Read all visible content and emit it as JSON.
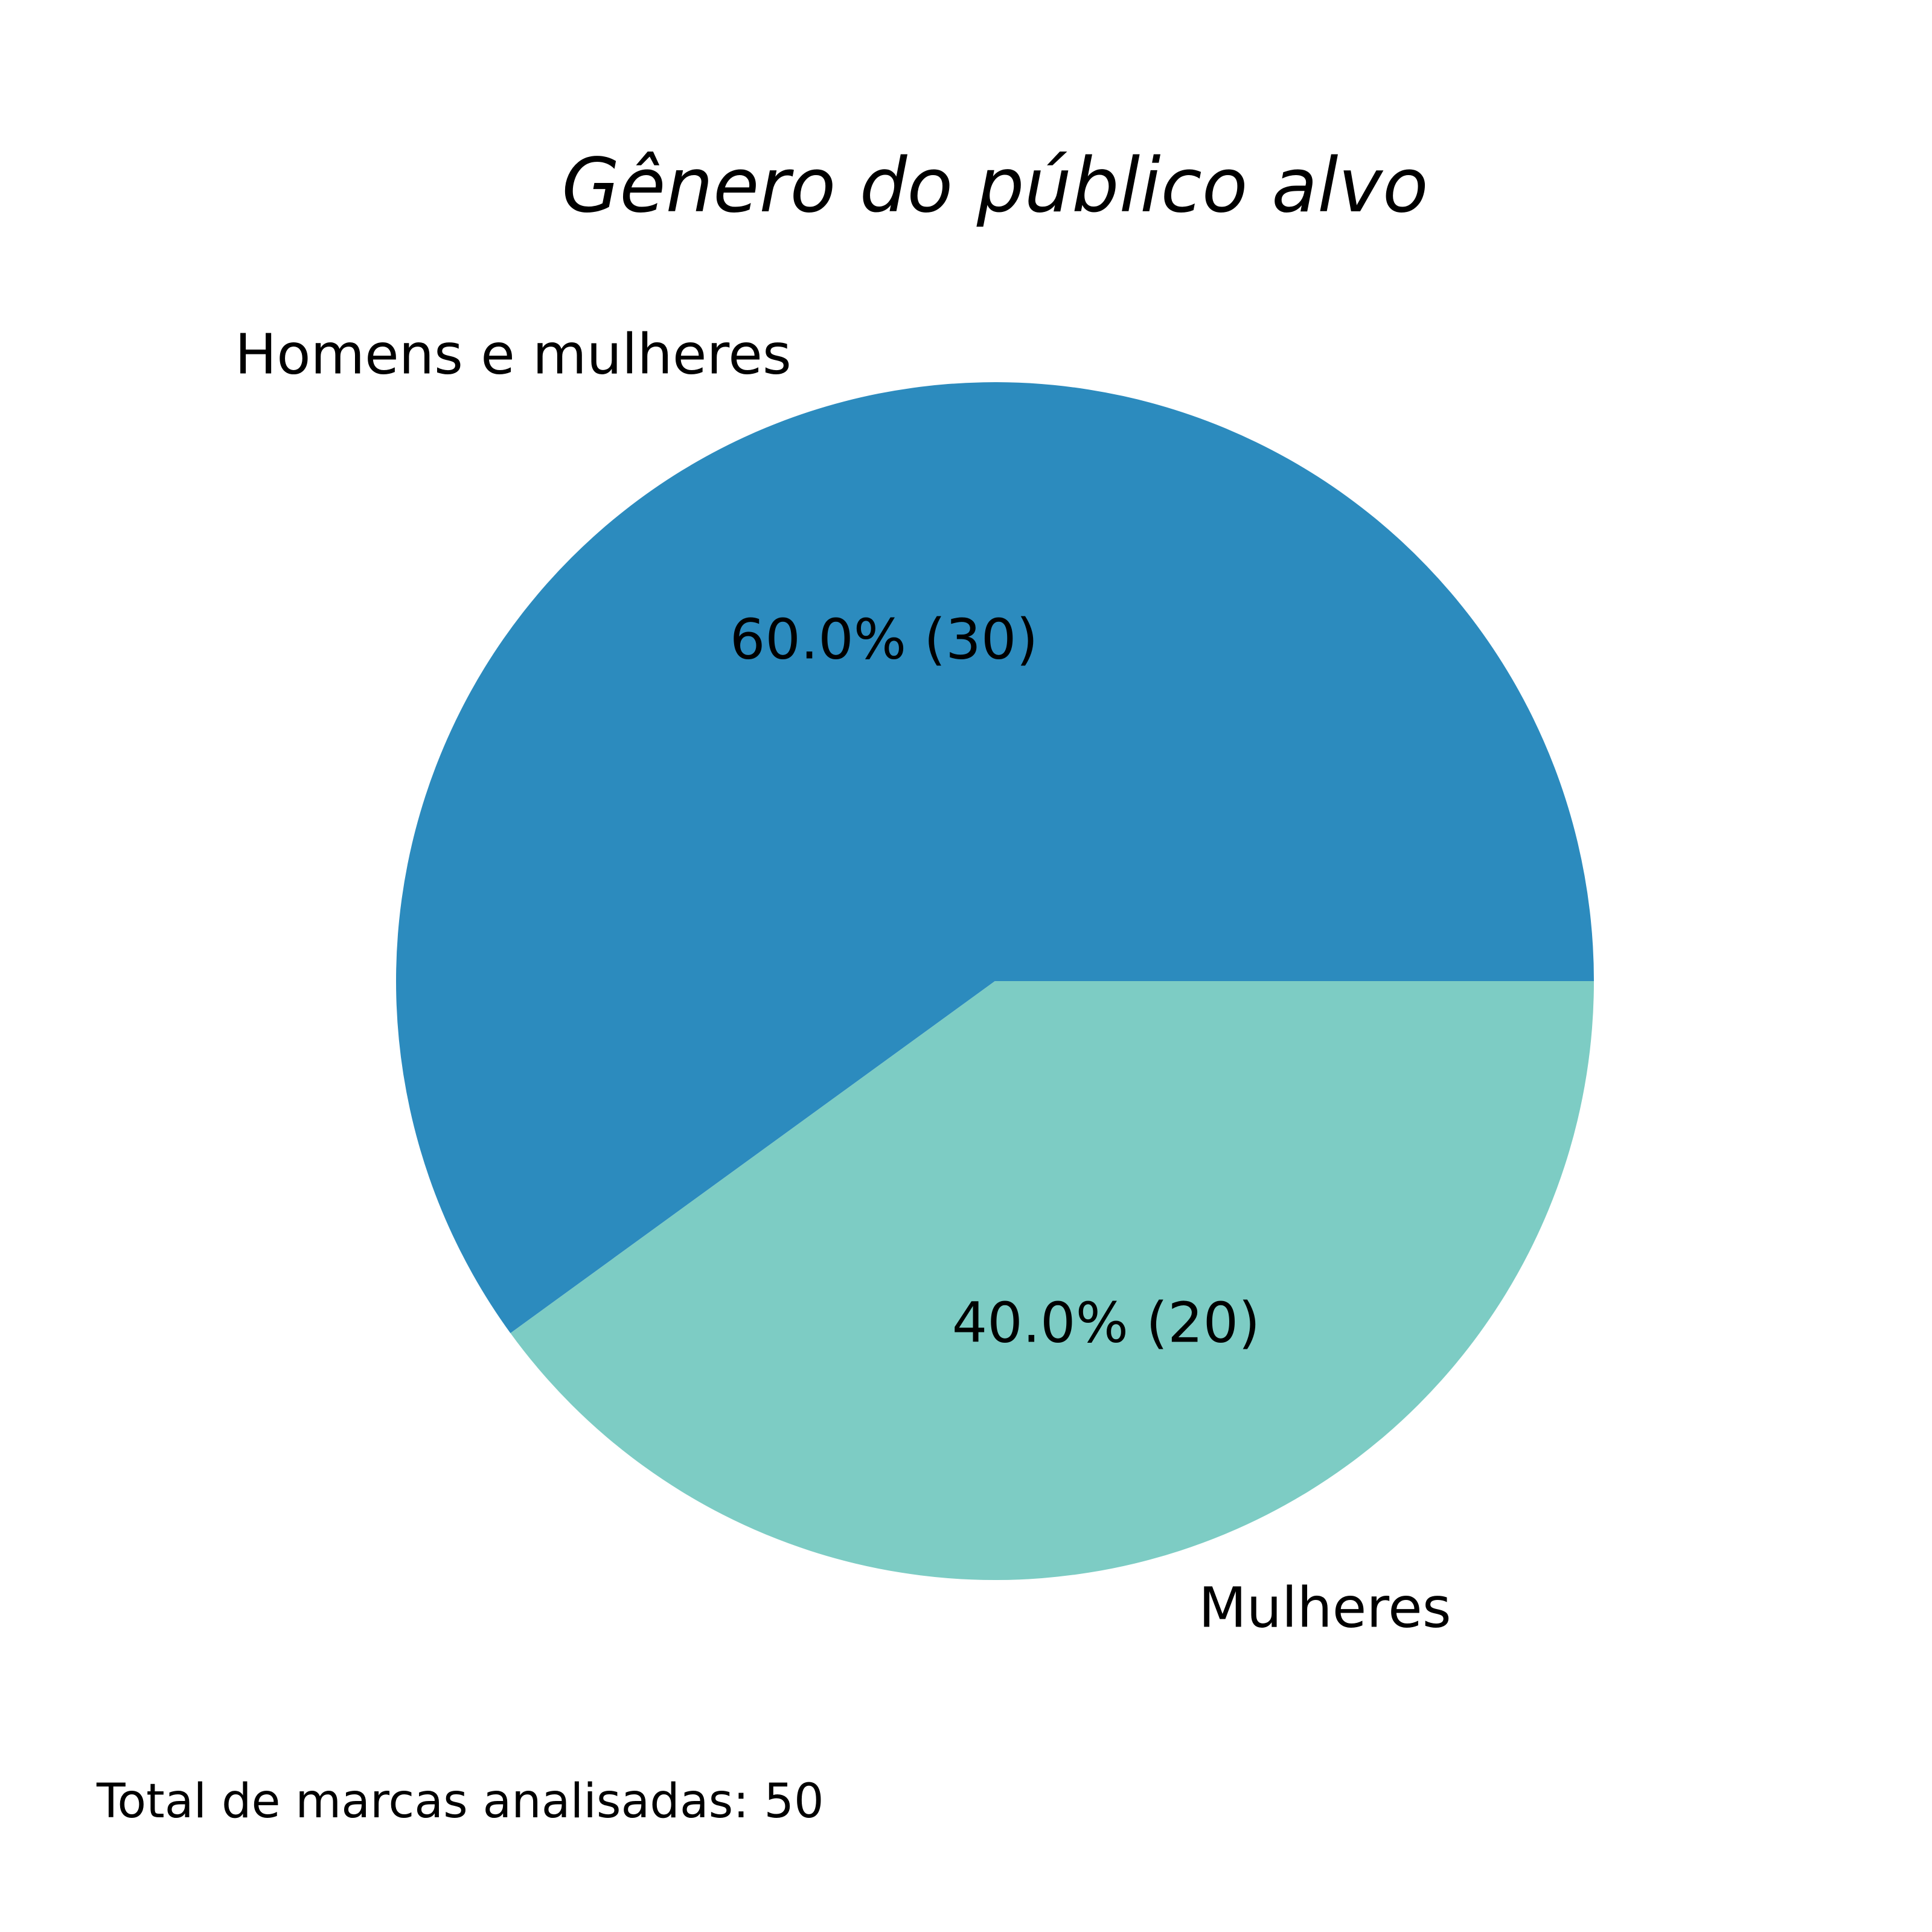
{
  "chart_data": {
    "type": "pie",
    "title": "Gênero do público alvo",
    "slices": [
      {
        "label": "Homens e mulheres",
        "value": 30,
        "percent": 60.0,
        "value_label": "60.0% (30)",
        "color": "#2c8bbe"
      },
      {
        "label": "Mulheres",
        "value": 20,
        "percent": 40.0,
        "value_label": "40.0% (20)",
        "color": "#7dccc4"
      }
    ],
    "start_angle_deg": 0,
    "direction": "counterclockwise",
    "footnote": "Total de marcas analisadas: 50"
  }
}
